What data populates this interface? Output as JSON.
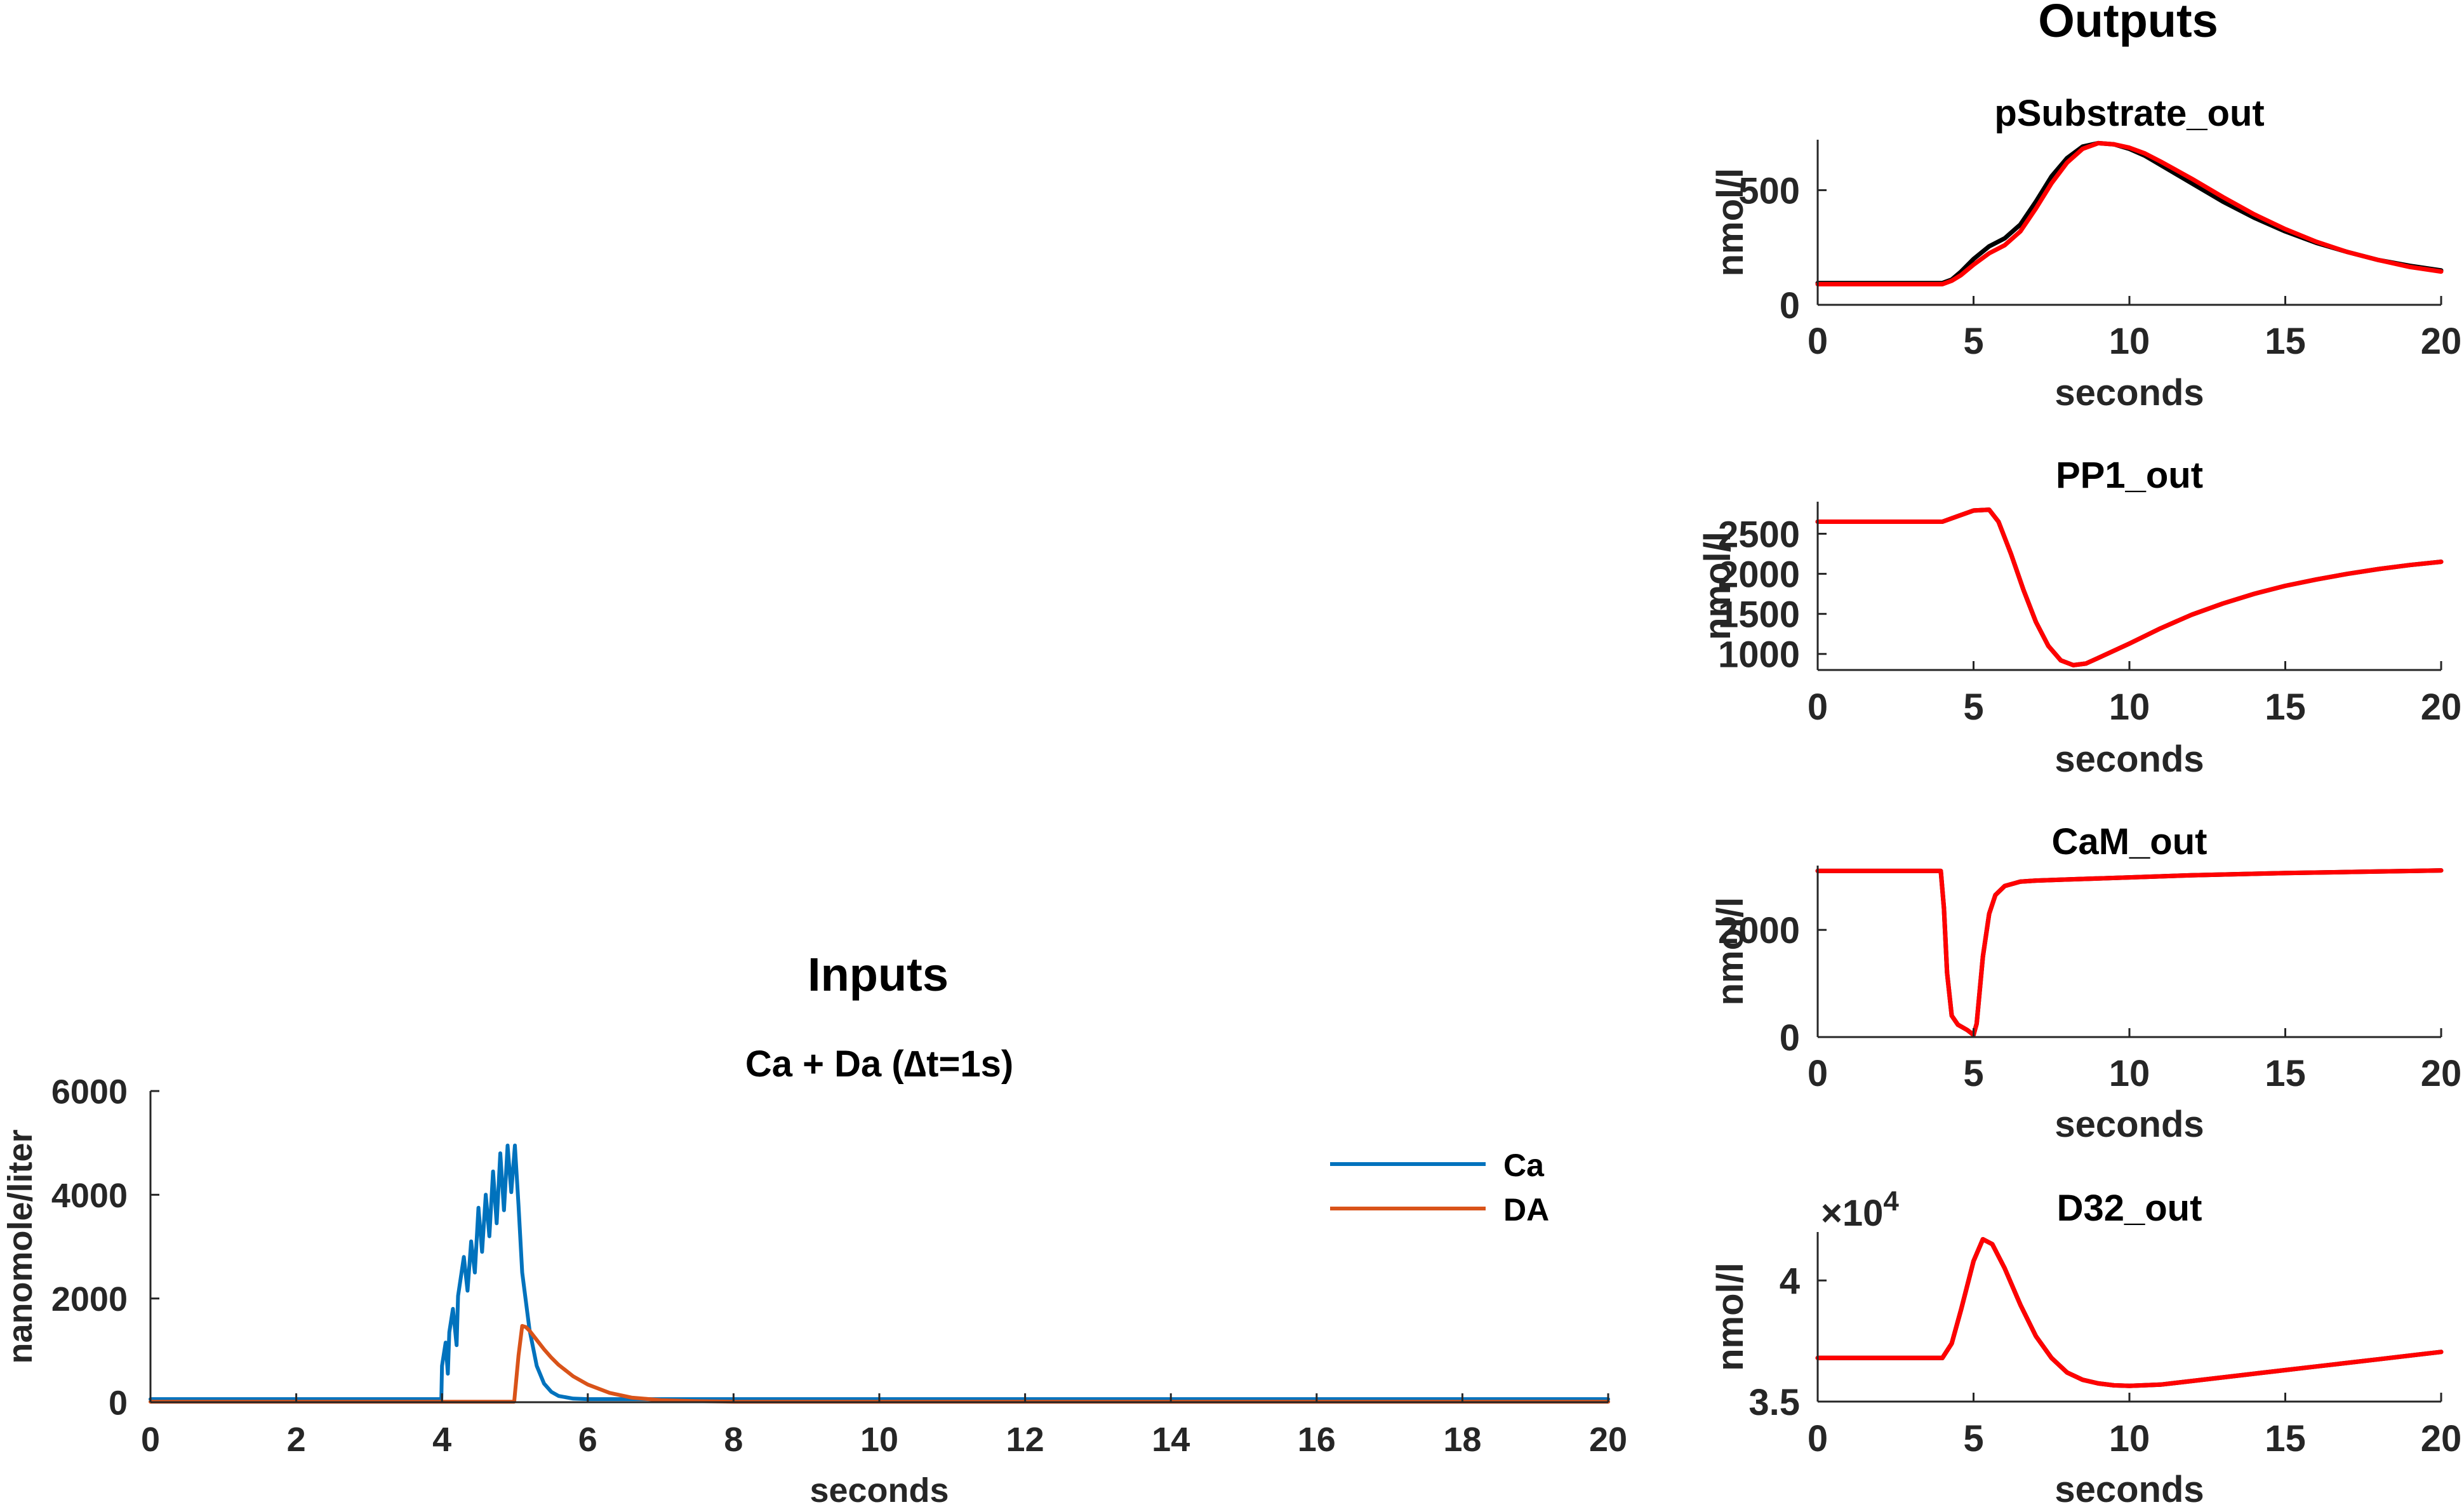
{
  "figure": {
    "inputs_heading": "Inputs",
    "outputs_heading": "Outputs"
  },
  "colors": {
    "ca": "#0072BD",
    "da": "#D95319",
    "reference": "#000000",
    "fit": "#FF0000",
    "axis": "#262626"
  },
  "chart_data": [
    {
      "id": "inputs",
      "type": "line",
      "title": "Ca + Da (∆t=1s)",
      "xlabel": "seconds",
      "ylabel": "nanomole/liter",
      "xlim": [
        0,
        20
      ],
      "ylim": [
        0,
        6000
      ],
      "xticks": [
        0,
        2,
        4,
        6,
        8,
        10,
        12,
        14,
        16,
        18,
        20
      ],
      "yticks": [
        0,
        2000,
        4000,
        6000
      ],
      "grid": false,
      "legend": "right",
      "series": [
        {
          "name": "Ca",
          "color": "#0072BD",
          "x": [
            0,
            3.99,
            4.0,
            4.05,
            4.08,
            4.1,
            4.15,
            4.2,
            4.22,
            4.3,
            4.35,
            4.4,
            4.45,
            4.5,
            4.55,
            4.6,
            4.65,
            4.7,
            4.75,
            4.8,
            4.85,
            4.9,
            4.95,
            5.0,
            5.05,
            5.1,
            5.2,
            5.3,
            5.4,
            5.5,
            5.6,
            5.8,
            6.0,
            20
          ],
          "y": [
            60,
            60,
            700,
            1150,
            550,
            1350,
            1800,
            1100,
            2050,
            2800,
            2150,
            3100,
            2500,
            3750,
            2900,
            4000,
            3200,
            4450,
            3450,
            4800,
            3700,
            4950,
            4050,
            4950,
            3800,
            2500,
            1400,
            700,
            360,
            200,
            120,
            70,
            60,
            60
          ]
        },
        {
          "name": "DA",
          "color": "#D95319",
          "x": [
            0,
            4.99,
            5.05,
            5.1,
            5.15,
            5.2,
            5.3,
            5.4,
            5.5,
            5.6,
            5.8,
            6.0,
            6.3,
            6.6,
            7.0,
            7.5,
            8.0,
            20
          ],
          "y": [
            10,
            10,
            900,
            1470,
            1450,
            1380,
            1200,
            1020,
            860,
            720,
            500,
            340,
            180,
            90,
            40,
            20,
            10,
            10
          ]
        }
      ]
    },
    {
      "id": "psubstrate",
      "type": "line",
      "title": "pSubstrate_out",
      "xlabel": "seconds",
      "ylabel": "nmol/l",
      "xlim": [
        0,
        20
      ],
      "ylim": [
        0,
        720
      ],
      "xticks": [
        0,
        5,
        10,
        15,
        20
      ],
      "yticks": [
        0,
        500
      ],
      "grid": false,
      "series": [
        {
          "color": "#000000",
          "x": [
            0,
            4,
            4.3,
            4.6,
            5.0,
            5.5,
            6.0,
            6.5,
            7.0,
            7.5,
            8.0,
            8.5,
            9.0,
            9.5,
            10.0,
            10.5,
            11,
            12,
            13,
            14,
            15,
            16,
            17,
            18,
            19,
            20
          ],
          "y": [
            95,
            95,
            110,
            145,
            200,
            255,
            290,
            350,
            450,
            560,
            640,
            690,
            705,
            700,
            680,
            650,
            610,
            530,
            450,
            380,
            320,
            270,
            230,
            195,
            170,
            150
          ]
        },
        {
          "color": "#FF0000",
          "x": [
            0,
            4,
            4.3,
            4.6,
            5.0,
            5.5,
            6.0,
            6.5,
            7.0,
            7.5,
            8.0,
            8.5,
            9.0,
            9.5,
            10.0,
            10.5,
            11,
            12,
            13,
            14,
            15,
            16,
            17,
            18,
            19,
            20
          ],
          "y": [
            90,
            90,
            105,
            130,
            175,
            225,
            260,
            320,
            420,
            530,
            620,
            680,
            705,
            700,
            685,
            660,
            625,
            550,
            470,
            395,
            330,
            275,
            230,
            195,
            165,
            145
          ]
        }
      ]
    },
    {
      "id": "pp1",
      "type": "line",
      "title": "PP1_out",
      "xlabel": "seconds",
      "ylabel": "nmol/l",
      "xlim": [
        0,
        20
      ],
      "ylim": [
        800,
        2900
      ],
      "xticks": [
        0,
        5,
        10,
        15,
        20
      ],
      "yticks": [
        1000,
        1500,
        2000,
        2500
      ],
      "grid": false,
      "series": [
        {
          "color": "#000000",
          "x": [
            0,
            4,
            4.5,
            5.0,
            5.5,
            5.8,
            6.2,
            6.6,
            7.0,
            7.4,
            7.8,
            8.2,
            8.6,
            9.0,
            10,
            11,
            12,
            13,
            14,
            15,
            16,
            17,
            18,
            19,
            20
          ],
          "y": [
            2650,
            2650,
            2720,
            2790,
            2800,
            2650,
            2250,
            1800,
            1400,
            1100,
            920,
            860,
            880,
            950,
            1130,
            1320,
            1490,
            1630,
            1750,
            1850,
            1930,
            2000,
            2060,
            2110,
            2150
          ]
        },
        {
          "color": "#FF0000",
          "x": [
            0,
            4,
            4.5,
            5.0,
            5.5,
            5.8,
            6.2,
            6.6,
            7.0,
            7.4,
            7.8,
            8.2,
            8.6,
            9.0,
            10,
            11,
            12,
            13,
            14,
            15,
            16,
            17,
            18,
            19,
            20
          ],
          "y": [
            2650,
            2650,
            2720,
            2790,
            2800,
            2650,
            2250,
            1800,
            1400,
            1100,
            920,
            860,
            880,
            950,
            1130,
            1320,
            1490,
            1630,
            1750,
            1850,
            1930,
            2000,
            2060,
            2110,
            2150
          ]
        }
      ]
    },
    {
      "id": "cam",
      "type": "line",
      "title": "CaM_out",
      "xlabel": "seconds",
      "ylabel": "nmol/l",
      "xlim": [
        0,
        20
      ],
      "ylim": [
        0,
        3200
      ],
      "xticks": [
        0,
        5,
        10,
        15,
        20
      ],
      "yticks": [
        0,
        2000
      ],
      "grid": false,
      "series": [
        {
          "color": "#000000",
          "x": [
            0,
            3.95,
            4.05,
            4.15,
            4.3,
            4.5,
            4.8,
            5.0,
            5.1,
            5.3,
            5.5,
            5.7,
            6.0,
            6.5,
            7.0,
            8,
            10,
            12,
            15,
            18,
            20
          ],
          "y": [
            3100,
            3100,
            2400,
            1200,
            400,
            230,
            130,
            40,
            250,
            1500,
            2300,
            2650,
            2820,
            2900,
            2920,
            2940,
            2980,
            3020,
            3060,
            3090,
            3110
          ]
        },
        {
          "color": "#FF0000",
          "x": [
            0,
            3.95,
            4.05,
            4.15,
            4.3,
            4.5,
            4.8,
            5.0,
            5.1,
            5.3,
            5.5,
            5.7,
            6.0,
            6.5,
            7.0,
            8,
            10,
            12,
            15,
            18,
            20
          ],
          "y": [
            3100,
            3100,
            2400,
            1200,
            400,
            230,
            130,
            40,
            250,
            1500,
            2300,
            2650,
            2820,
            2900,
            2920,
            2940,
            2980,
            3020,
            3060,
            3090,
            3110
          ]
        }
      ]
    },
    {
      "id": "d32",
      "type": "line",
      "title": "D32_out",
      "xlabel": "seconds",
      "ylabel": "nmol/l",
      "xlim": [
        0,
        20
      ],
      "ylim": [
        3.5,
        4.2
      ],
      "xticks": [
        0,
        5,
        10,
        15,
        20
      ],
      "yticks": [
        3.5,
        4
      ],
      "multiplier_base": "×10",
      "multiplier_exp": "4",
      "grid": false,
      "series": [
        {
          "color": "#000000",
          "x": [
            0,
            4,
            4.3,
            4.6,
            5.0,
            5.3,
            5.6,
            6.0,
            6.5,
            7.0,
            7.5,
            8,
            8.5,
            9,
            9.5,
            10,
            11,
            12,
            14,
            16,
            18,
            20
          ],
          "y": [
            3.68,
            3.68,
            3.74,
            3.88,
            4.08,
            4.17,
            4.15,
            4.05,
            3.9,
            3.77,
            3.68,
            3.62,
            3.59,
            3.575,
            3.567,
            3.565,
            3.57,
            3.585,
            3.615,
            3.645,
            3.675,
            3.705
          ]
        },
        {
          "color": "#FF0000",
          "x": [
            0,
            4,
            4.3,
            4.6,
            5.0,
            5.3,
            5.6,
            6.0,
            6.5,
            7.0,
            7.5,
            8,
            8.5,
            9,
            9.5,
            10,
            11,
            12,
            14,
            16,
            18,
            20
          ],
          "y": [
            3.68,
            3.68,
            3.74,
            3.88,
            4.08,
            4.17,
            4.15,
            4.05,
            3.9,
            3.77,
            3.68,
            3.62,
            3.59,
            3.575,
            3.567,
            3.565,
            3.57,
            3.585,
            3.615,
            3.645,
            3.675,
            3.705
          ]
        }
      ]
    }
  ]
}
